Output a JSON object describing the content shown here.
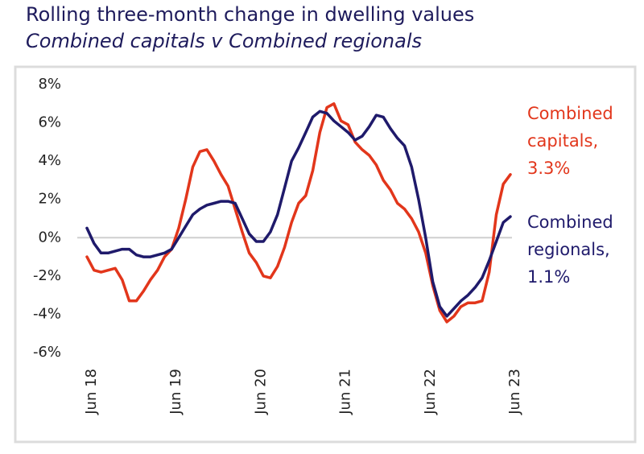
{
  "chart_data": {
    "type": "line",
    "title": "Rolling three-month change in dwelling values",
    "subtitle": "Combined capitals v Combined regionals",
    "categories": [
      "Jun 18",
      null,
      null,
      null,
      null,
      null,
      null,
      null,
      null,
      null,
      null,
      null,
      "Jun 19",
      null,
      null,
      null,
      null,
      null,
      null,
      null,
      null,
      null,
      null,
      null,
      "Jun 20",
      null,
      null,
      null,
      null,
      null,
      null,
      null,
      null,
      null,
      null,
      null,
      "Jun 21",
      null,
      null,
      null,
      null,
      null,
      null,
      null,
      null,
      null,
      null,
      null,
      "Jun 22",
      null,
      null,
      null,
      null,
      null,
      null,
      null,
      null,
      null,
      null,
      null,
      "Jun 23"
    ],
    "series": [
      {
        "name": "Combined capitals",
        "color": "#e2361b",
        "values": [
          -1.0,
          -1.7,
          -1.8,
          -1.7,
          -1.6,
          -2.2,
          -3.3,
          -3.3,
          -2.8,
          -2.2,
          -1.7,
          -1.0,
          -0.6,
          0.5,
          2.0,
          3.7,
          4.5,
          4.6,
          4.0,
          3.3,
          2.7,
          1.5,
          0.3,
          -0.8,
          -1.3,
          -2.0,
          -2.1,
          -1.5,
          -0.5,
          0.8,
          1.8,
          2.2,
          3.5,
          5.5,
          6.8,
          7.0,
          6.1,
          5.9,
          5.0,
          4.6,
          4.3,
          3.8,
          3.0,
          2.5,
          1.8,
          1.5,
          1.0,
          0.3,
          -0.8,
          -2.5,
          -3.8,
          -4.4,
          -4.1,
          -3.6,
          -3.4,
          -3.4,
          -3.3,
          -1.8,
          1.2,
          2.8,
          3.3
        ]
      },
      {
        "name": "Combined regionals",
        "color": "#1f1a6b",
        "values": [
          0.5,
          -0.3,
          -0.8,
          -0.8,
          -0.7,
          -0.6,
          -0.6,
          -0.9,
          -1.0,
          -1.0,
          -0.9,
          -0.8,
          -0.6,
          0.0,
          0.6,
          1.2,
          1.5,
          1.7,
          1.8,
          1.9,
          1.9,
          1.8,
          1.0,
          0.2,
          -0.2,
          -0.2,
          0.3,
          1.2,
          2.6,
          4.0,
          4.7,
          5.5,
          6.3,
          6.6,
          6.5,
          6.1,
          5.8,
          5.5,
          5.1,
          5.3,
          5.8,
          6.4,
          6.3,
          5.7,
          5.2,
          4.8,
          3.7,
          2.0,
          0.0,
          -2.3,
          -3.6,
          -4.1,
          -3.7,
          -3.3,
          -3.0,
          -2.6,
          -2.1,
          -1.2,
          -0.2,
          0.8,
          1.1
        ]
      }
    ],
    "annotations": [
      {
        "series": 0,
        "lines": [
          "Combined",
          "capitals,",
          "3.3%"
        ]
      },
      {
        "series": 1,
        "lines": [
          "Combined",
          "regionals,",
          "1.1%"
        ]
      }
    ],
    "ylim": [
      -6,
      8
    ],
    "yticks": [
      {
        "value": -6,
        "label": "-6%"
      },
      {
        "value": -4,
        "label": "-4%"
      },
      {
        "value": -2,
        "label": "-2%"
      },
      {
        "value": 0,
        "label": "0%"
      },
      {
        "value": 2,
        "label": "2%"
      },
      {
        "value": 4,
        "label": "4%"
      },
      {
        "value": 6,
        "label": "6%"
      },
      {
        "value": 8,
        "label": "8%"
      }
    ],
    "zero_line": true
  }
}
